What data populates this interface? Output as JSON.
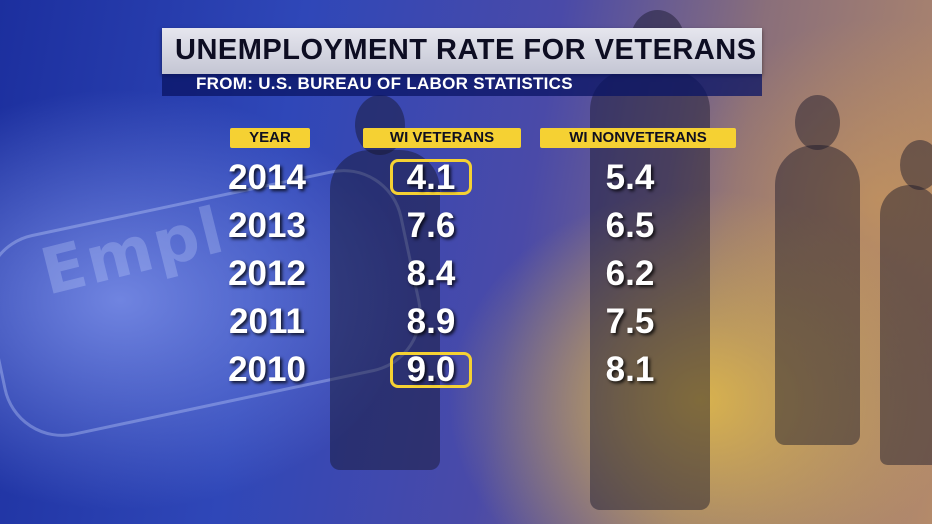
{
  "title": "UNEMPLOYMENT RATE FOR VETERANS",
  "subtitle": "FROM: U.S. BUREAU OF LABOR STATISTICS",
  "background_text": "Empl",
  "colors": {
    "header_yellow": "#f5d133",
    "highlight_yellow": "#f5d133",
    "title_banner": "#d6d7e2"
  },
  "chart_data": {
    "type": "table",
    "columns": [
      "YEAR",
      "WI VETERANS",
      "WI NONVETERANS"
    ],
    "rows": [
      {
        "year": "2014",
        "wi_veterans": "4.1",
        "wi_nonveterans": "5.4",
        "veterans_highlighted": true
      },
      {
        "year": "2013",
        "wi_veterans": "7.6",
        "wi_nonveterans": "6.5",
        "veterans_highlighted": false
      },
      {
        "year": "2012",
        "wi_veterans": "8.4",
        "wi_nonveterans": "6.2",
        "veterans_highlighted": false
      },
      {
        "year": "2011",
        "wi_veterans": "8.9",
        "wi_nonveterans": "7.5",
        "veterans_highlighted": false
      },
      {
        "year": "2010",
        "wi_veterans": "9.0",
        "wi_nonveterans": "8.1",
        "veterans_highlighted": true
      }
    ]
  }
}
